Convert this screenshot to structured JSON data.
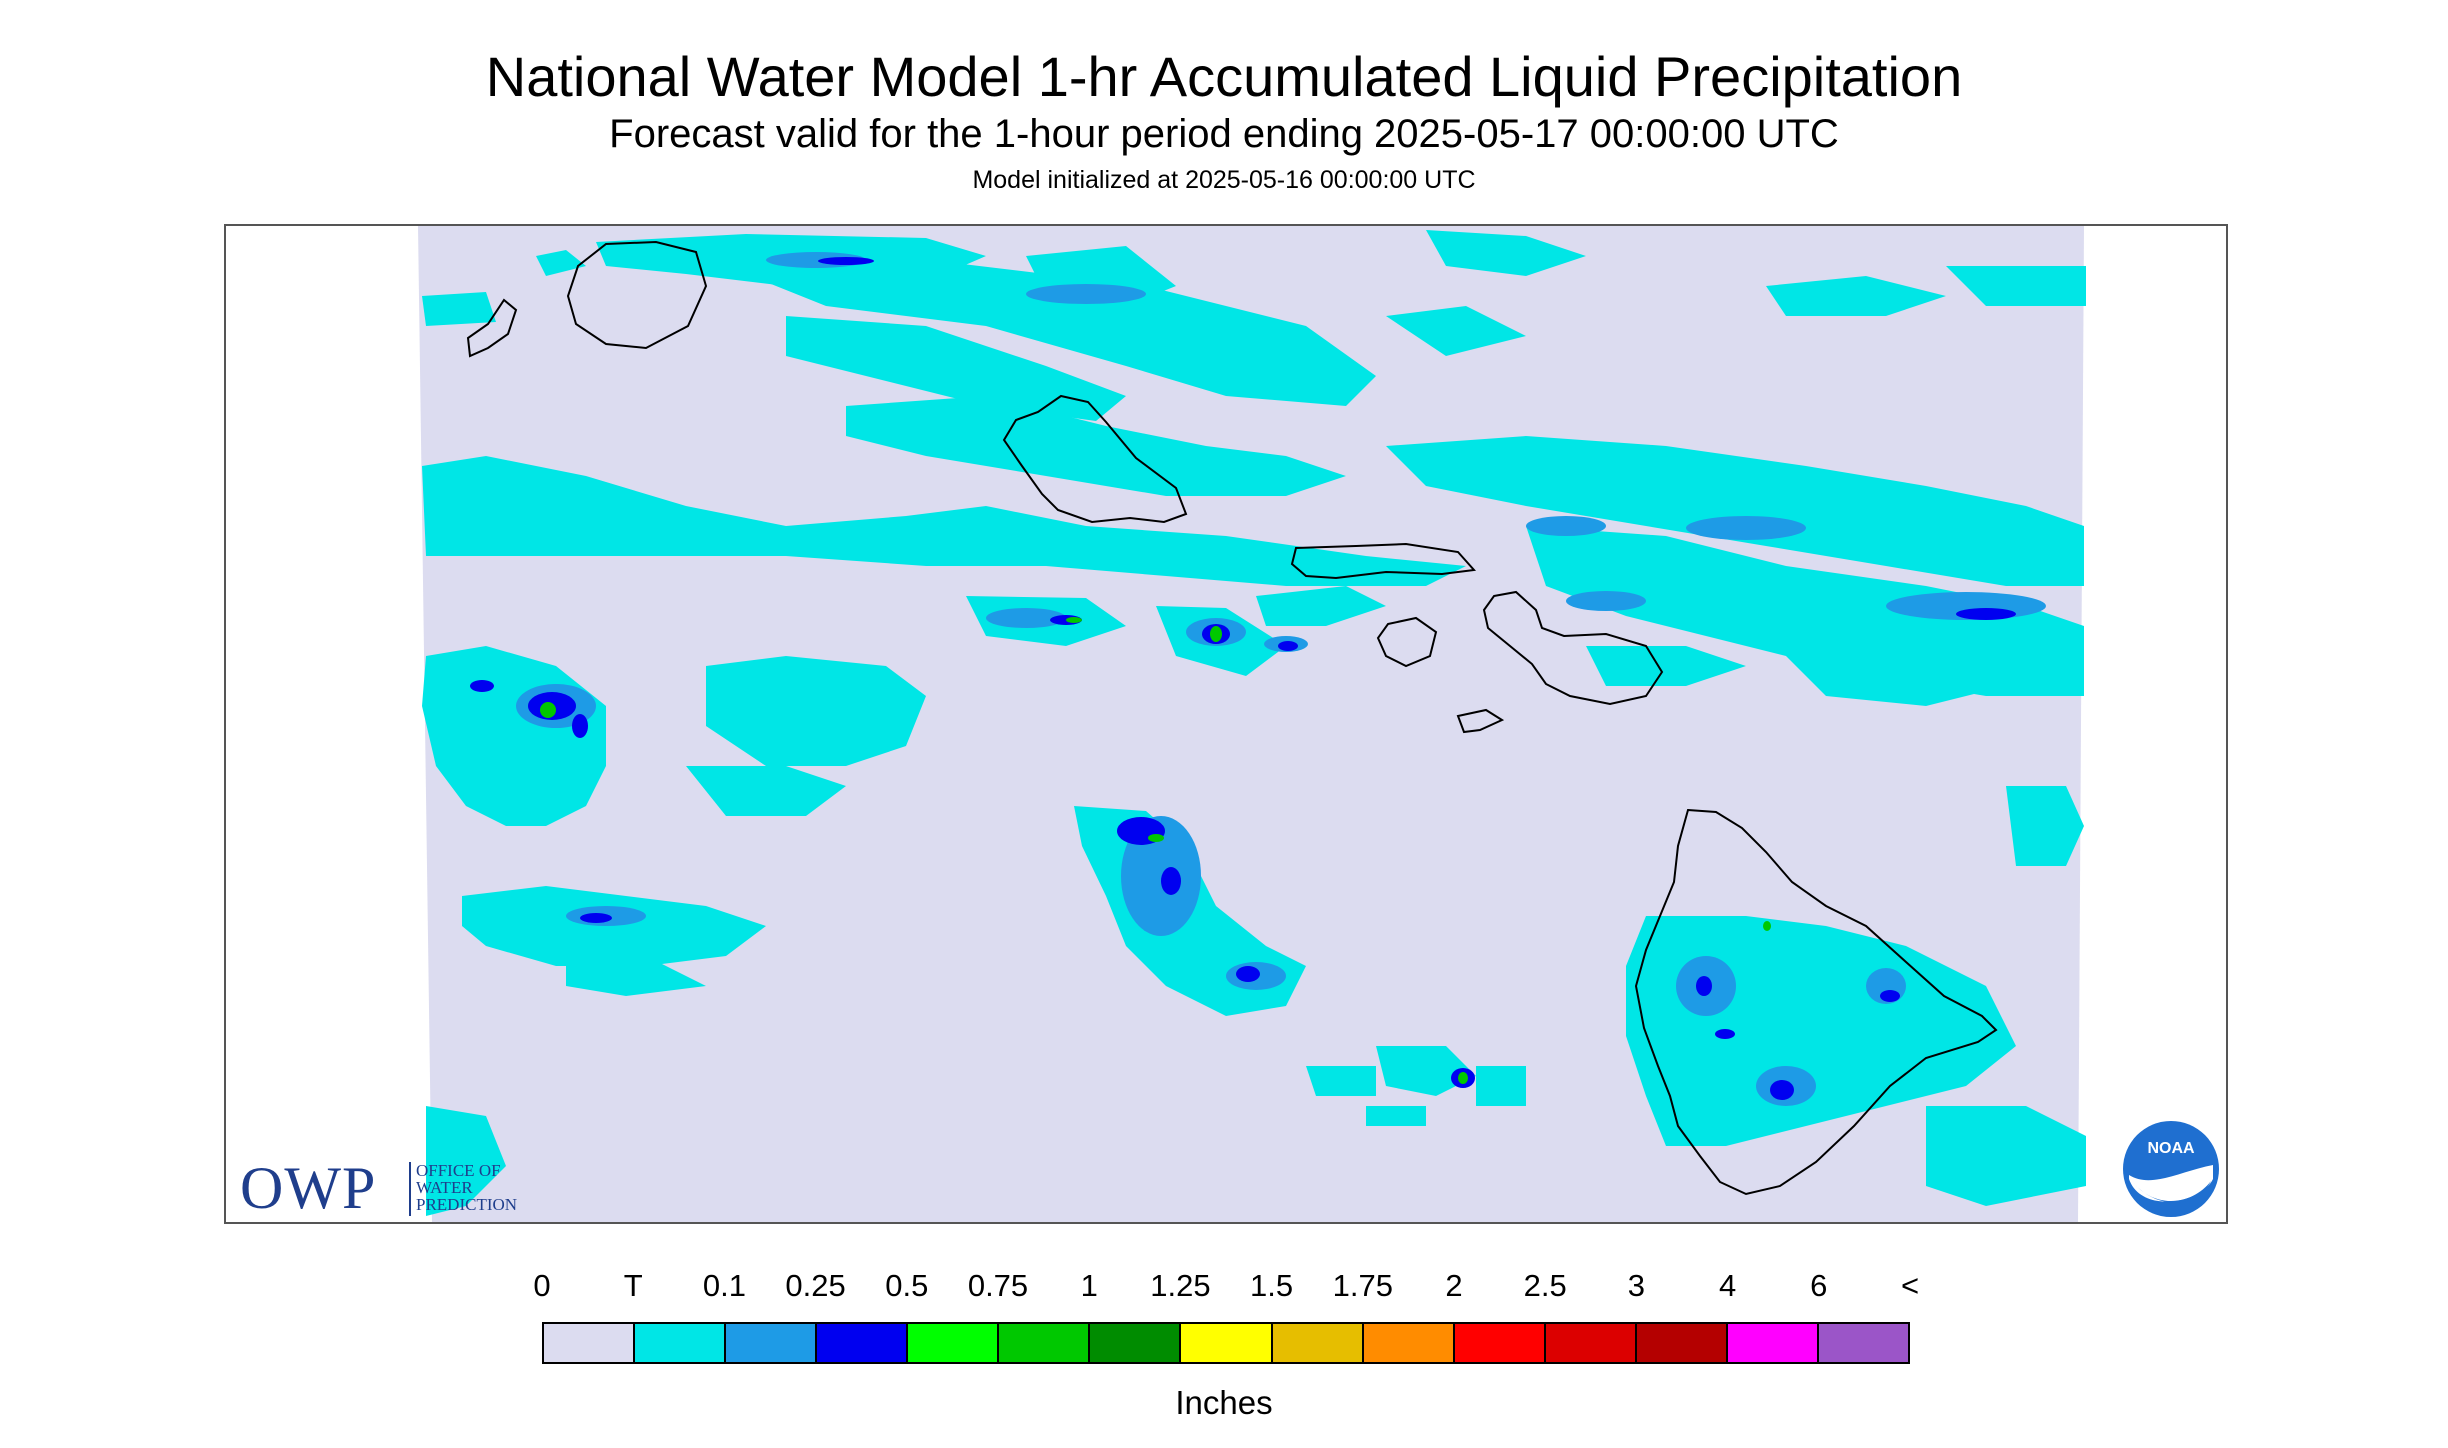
{
  "header": {
    "title": "National Water Model 1-hr Accumulated Liquid Precipitation",
    "subtitle": "Forecast valid for the 1-hour period ending 2025-05-17 00:00:00 UTC",
    "init": "Model initialized at 2025-05-16 00:00:00 UTC"
  },
  "logos": {
    "owp_big": "OWP",
    "owp_small": [
      "OFFICE OF",
      "WATER",
      "PREDICTION"
    ],
    "noaa": "NOAA"
  },
  "legend": {
    "labels": [
      "0",
      "T",
      "0.1",
      "0.25",
      "0.5",
      "0.75",
      "1",
      "1.25",
      "1.5",
      "1.75",
      "2",
      "2.5",
      "3",
      "4",
      "6",
      "<"
    ],
    "colors": [
      "#dcdcf0",
      "#00e6e6",
      "#1e9be6",
      "#0000f0",
      "#00ff00",
      "#00c800",
      "#008c00",
      "#ffff00",
      "#e6be00",
      "#ff8c00",
      "#ff0000",
      "#dc0000",
      "#b40000",
      "#ff00ff",
      "#9b55c8"
    ],
    "units": "Inches"
  },
  "map": {
    "background_color": "#dcdcf0",
    "no_data_color": "#ffffff",
    "trace_color": "#00e6e6",
    "light_blue_color": "#1e9be6",
    "blue_color": "#0000f0",
    "green_color": "#00c800",
    "coast_color": "#000000"
  }
}
